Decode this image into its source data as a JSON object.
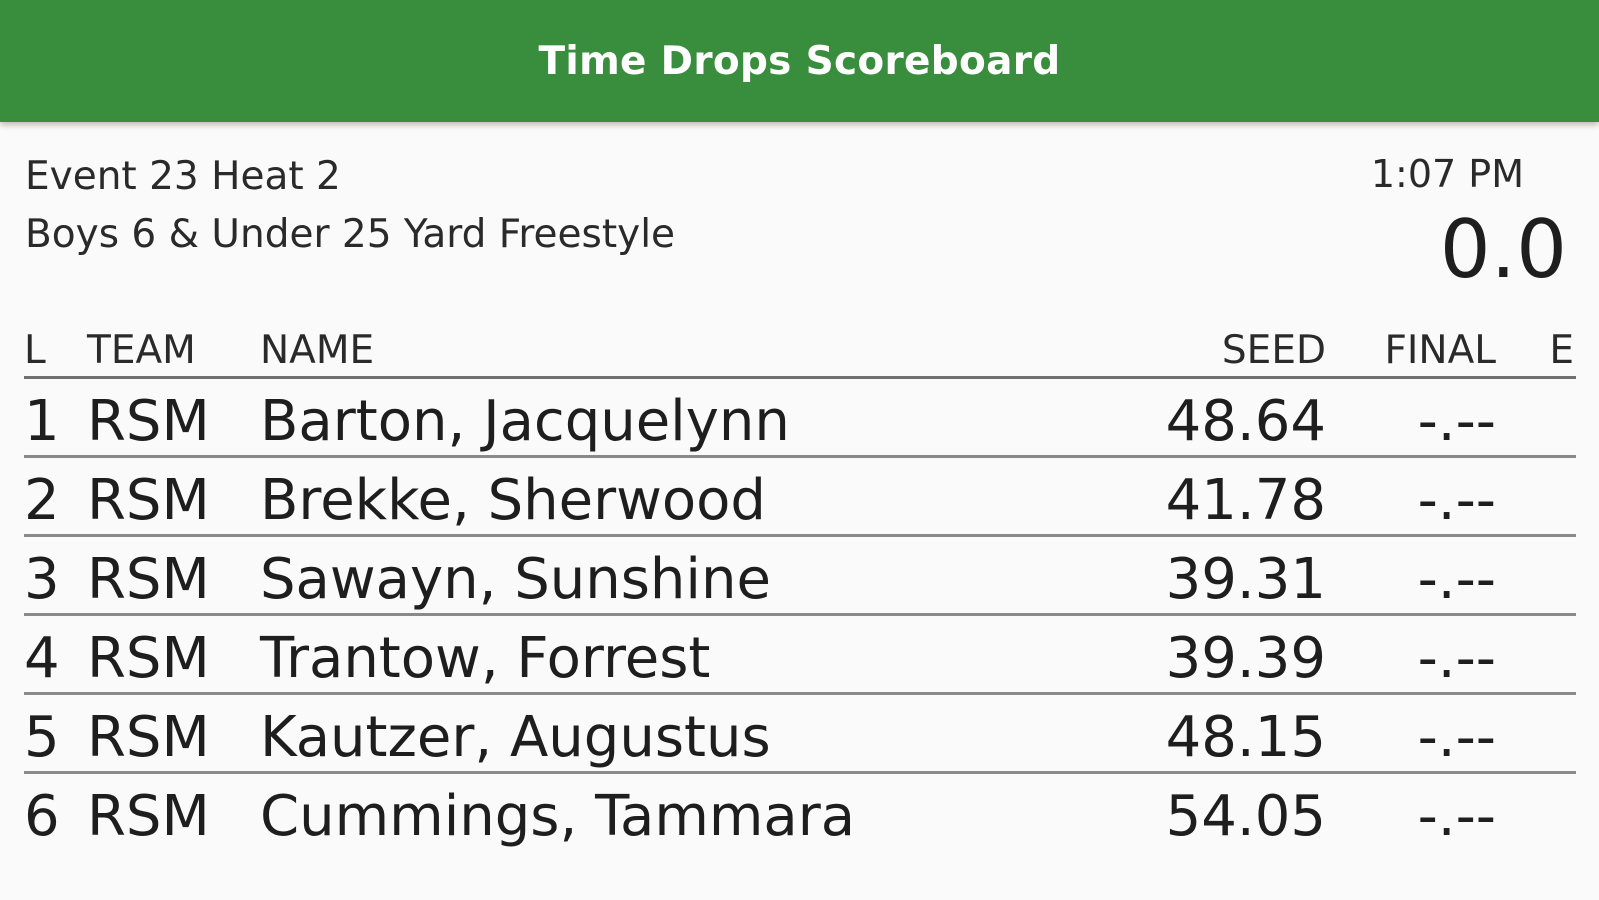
{
  "app": {
    "title": "Time Drops Scoreboard",
    "accent_color": "#388e3c"
  },
  "event": {
    "heat_line": "Event 23 Heat 2",
    "name": "Boys 6 & Under 25 Yard Freestyle"
  },
  "clock": {
    "time_of_day": "1:07 PM",
    "race_time": "0.0"
  },
  "table": {
    "headers": {
      "lane": "L",
      "team": "TEAM",
      "name": "NAME",
      "seed": "SEED",
      "final": "FINAL",
      "e": "E"
    },
    "rows": [
      {
        "lane": "1",
        "team": "RSM",
        "name": "Barton, Jacquelynn",
        "seed": "48.64",
        "final": "-.--",
        "e": ""
      },
      {
        "lane": "2",
        "team": "RSM",
        "name": "Brekke, Sherwood",
        "seed": "41.78",
        "final": "-.--",
        "e": ""
      },
      {
        "lane": "3",
        "team": "RSM",
        "name": "Sawayn, Sunshine",
        "seed": "39.31",
        "final": "-.--",
        "e": ""
      },
      {
        "lane": "4",
        "team": "RSM",
        "name": "Trantow, Forrest",
        "seed": "39.39",
        "final": "-.--",
        "e": ""
      },
      {
        "lane": "5",
        "team": "RSM",
        "name": "Kautzer, Augustus",
        "seed": "48.15",
        "final": "-.--",
        "e": ""
      },
      {
        "lane": "6",
        "team": "RSM",
        "name": "Cummings, Tammara",
        "seed": "54.05",
        "final": "-.--",
        "e": ""
      }
    ]
  }
}
